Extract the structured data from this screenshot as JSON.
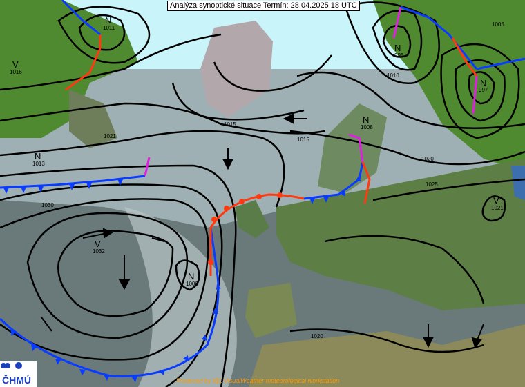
{
  "title": "Analýza synoptické situace Termín: 28.04.2025 18 UTC",
  "logo": {
    "text": "ČHMÚ",
    "color": "#1a3fbf"
  },
  "credit": "Produced by IBL VisualWeather meteorological workstation",
  "colors": {
    "cold_front": "#0a3cff",
    "warm_front": "#ff3a10",
    "occluded_front": "#e020e0",
    "isobar": "#000000",
    "credit_text": "#ff9a00"
  },
  "pressure_centers": [
    {
      "type": "V",
      "value": "1016"
    },
    {
      "type": "N",
      "value": "1011"
    },
    {
      "type": "N",
      "value": "995"
    },
    {
      "type": "N",
      "value": "997"
    },
    {
      "type": "N",
      "value": "1008"
    },
    {
      "type": "V",
      "value": "1021"
    },
    {
      "type": "V",
      "value": "1032"
    },
    {
      "type": "N",
      "value": "1006"
    },
    {
      "type": "N",
      "value": "1013"
    }
  ],
  "isobar_labels": [
    "1021",
    "1015",
    "1010",
    "1005",
    "1020",
    "1025",
    "1030",
    "1015",
    "1020"
  ]
}
